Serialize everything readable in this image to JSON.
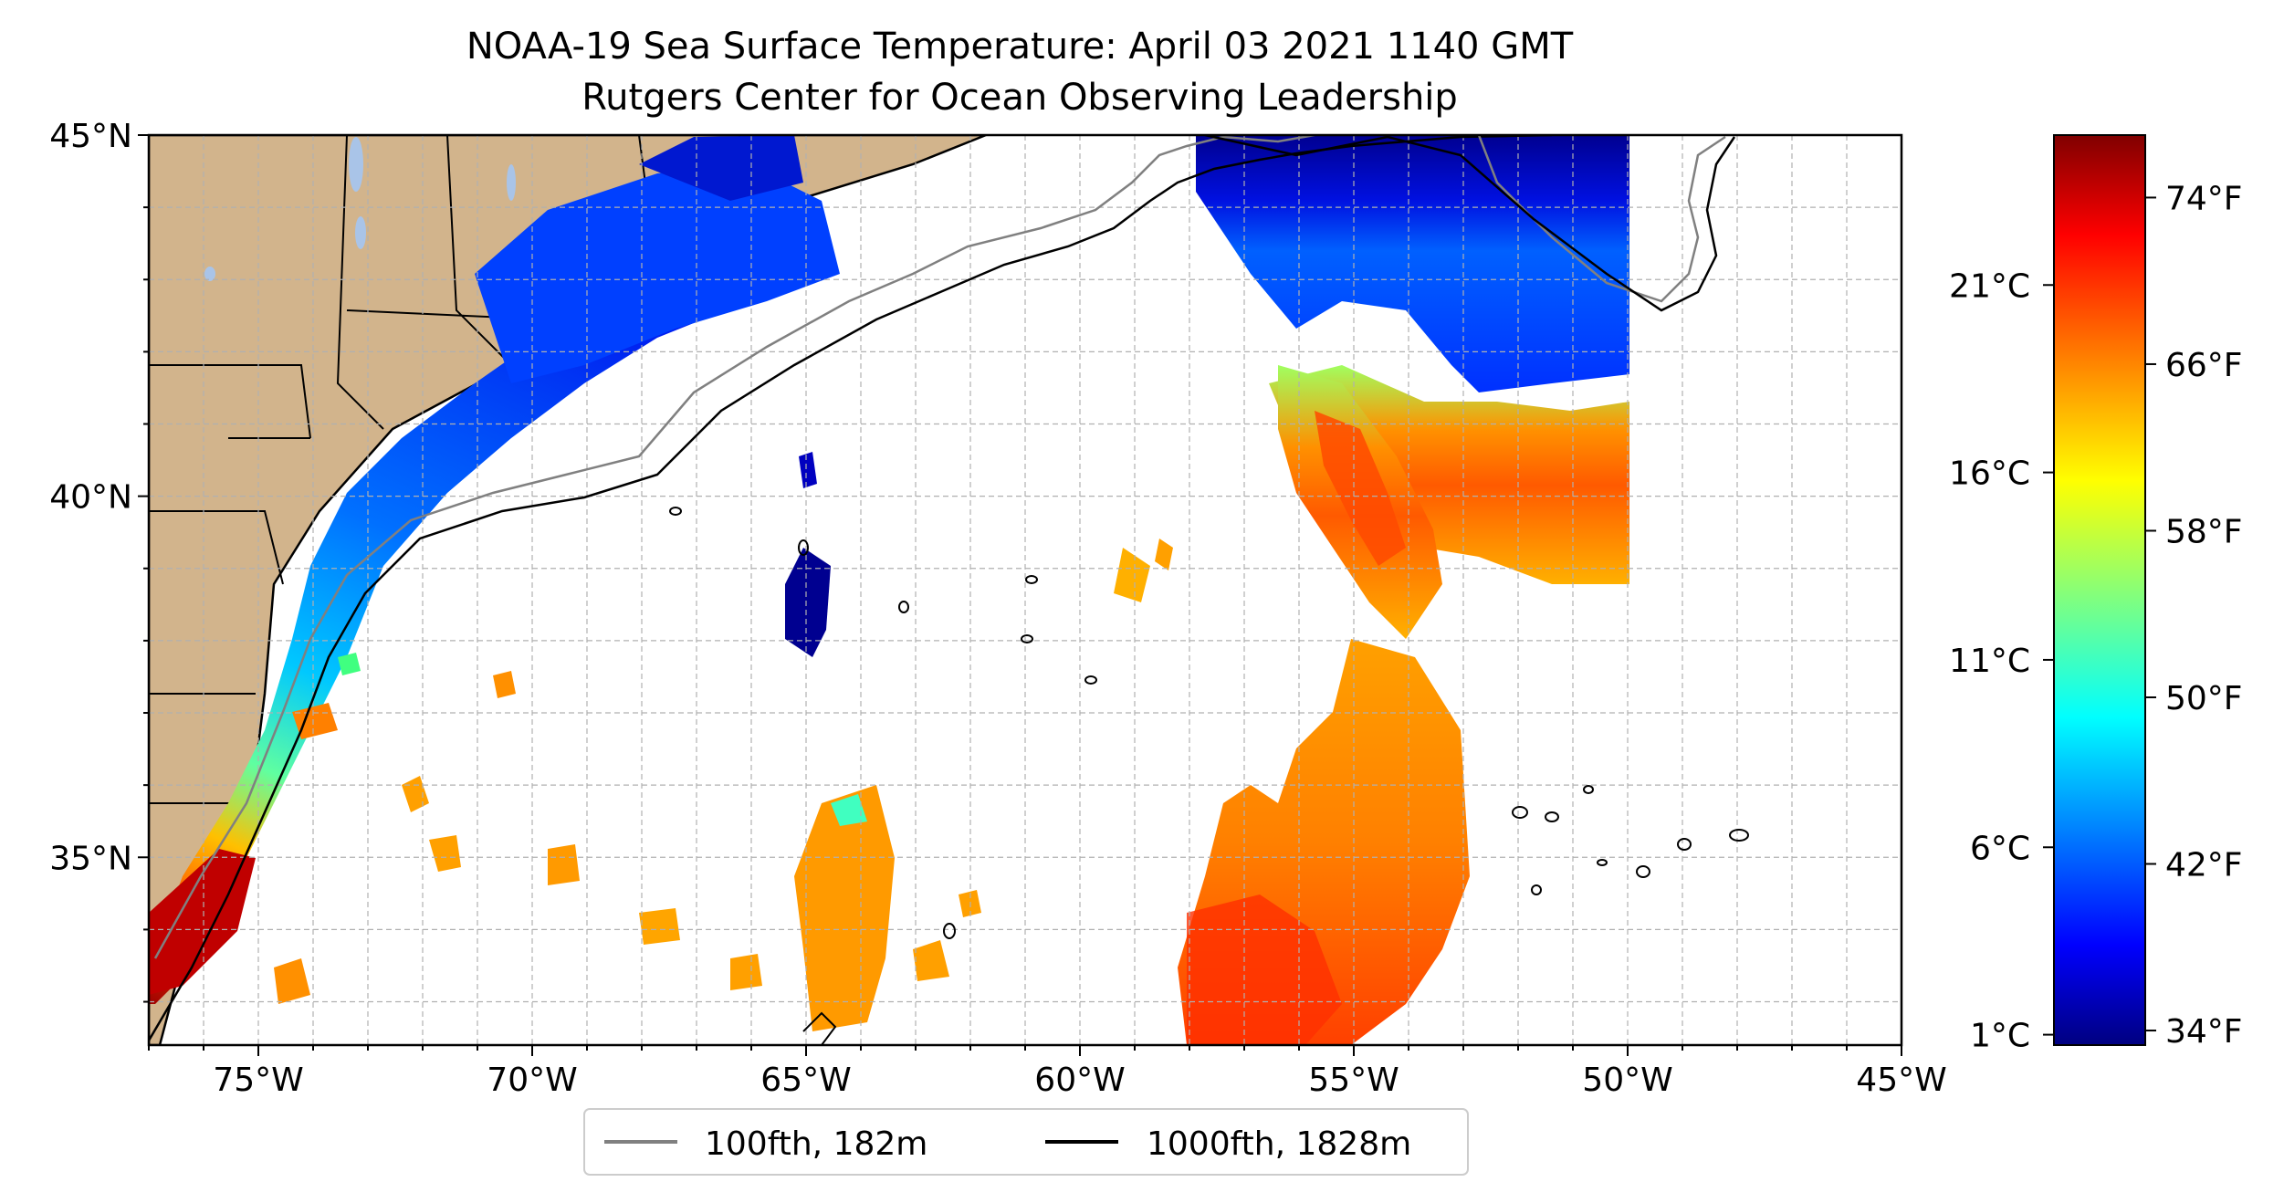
{
  "title": {
    "line1": "NOAA-19 Sea Surface Temperature: April 03 2021 1140 GMT",
    "line2": "Rutgers Center for Ocean Observing Leadership"
  },
  "map": {
    "lon_range": [
      -77,
      -45
    ],
    "lat_range": [
      32.4,
      45
    ],
    "grid": "dashed, every 1 degree",
    "land_color": "#d2b48c",
    "ocean_color": "#ffffff",
    "lake_color": "#a9c4e8",
    "x_ticks": [
      "75°W",
      "70°W",
      "65°W",
      "60°W",
      "55°W",
      "50°W",
      "45°W"
    ],
    "x_tick_values": [
      -75,
      -70,
      -65,
      -60,
      -55,
      -50,
      -45
    ],
    "y_ticks": [
      "45°N",
      "40°N",
      "35°N"
    ],
    "y_tick_values": [
      45,
      40,
      35
    ]
  },
  "legend": {
    "placement": "bottom-center, below map",
    "items": [
      {
        "label": "100fth, 182m",
        "color": "#808080"
      },
      {
        "label": "1000fth, 1828m",
        "color": "#000000"
      }
    ]
  },
  "colorbar": {
    "colormap": "jet",
    "celsius_ticks": [
      "21°C",
      "16°C",
      "11°C",
      "6°C",
      "1°C"
    ],
    "celsius_values": [
      21,
      16,
      11,
      6,
      1
    ],
    "fahrenheit_ticks": [
      "74°F",
      "66°F",
      "58°F",
      "50°F",
      "42°F",
      "34°F"
    ],
    "fahrenheit_values": [
      74,
      66,
      58,
      50,
      42,
      34
    ],
    "range_f": [
      33.3,
      77
    ]
  },
  "colors": {
    "jet": [
      "#000080",
      "#0000ff",
      "#0080ff",
      "#00ffff",
      "#80ff80",
      "#ffff00",
      "#ff8000",
      "#ff0000",
      "#800000"
    ]
  }
}
